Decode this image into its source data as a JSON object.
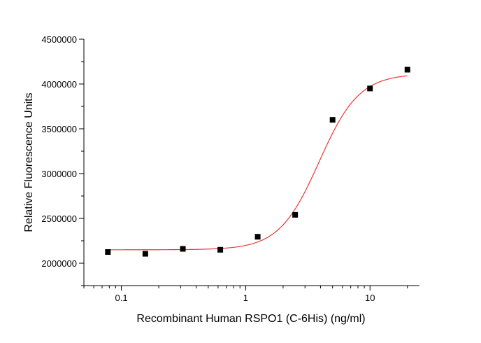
{
  "chart_data": {
    "type": "scatter",
    "xlabel": "Recombinant Human RSPO1 (C-6His) (ng/ml)",
    "ylabel": "Relative Fluorescence Units",
    "x_scale": "log",
    "xlim": [
      0.05,
      25
    ],
    "ylim": [
      1800000,
      4500000
    ],
    "x_ticks": [
      0.1,
      1,
      10
    ],
    "x_tick_labels": [
      "0.1",
      "1",
      "10"
    ],
    "y_ticks": [
      2000000,
      2500000,
      3000000,
      3500000,
      4000000,
      4500000
    ],
    "y_tick_labels": [
      "2000000",
      "2500000",
      "3000000",
      "3500000",
      "4000000",
      "4500000"
    ],
    "grid": false,
    "marker_color": "#000000",
    "fit_color": "#e53935",
    "series": [
      {
        "x": [
          0.078,
          0.156,
          0.3125,
          0.625,
          1.25,
          2.5,
          5,
          10,
          20
        ],
        "y": [
          2125000,
          2105000,
          2160000,
          2150000,
          2295000,
          2540000,
          3600000,
          3950000,
          4160000
        ]
      }
    ],
    "fit": {
      "type": "4PL",
      "bottom": 2150000,
      "top": 4115000,
      "ec50": 3.9,
      "hill": 2.7
    }
  }
}
